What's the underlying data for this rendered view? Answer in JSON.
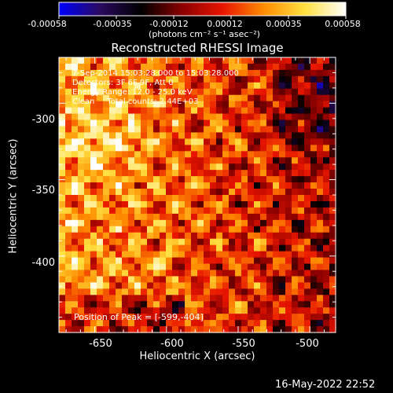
{
  "colorbar": {
    "ticks": [
      "-0.00058",
      "-0.00035",
      "-0.00012",
      "0.00012",
      "0.00035",
      "0.00058"
    ],
    "units_label": "(photons cm⁻² s⁻¹ asec⁻²)",
    "colors": [
      "#0000ff",
      "#2a0a60",
      "#000000",
      "#8a0000",
      "#e81500",
      "#ff8c00",
      "#ffe040",
      "#ffffff"
    ]
  },
  "chart_data": {
    "type": "heatmap",
    "title": "Reconstructed RHESSI Image",
    "xlabel": "Heliocentric X (arcsec)",
    "ylabel": "Heliocentric Y (arcsec)",
    "xlim": [
      -675,
      -482
    ],
    "ylim": [
      -450,
      -270
    ],
    "x_ticks": [
      -650,
      -600,
      -550,
      -500
    ],
    "y_ticks": [
      -300,
      -350,
      -400
    ],
    "value_range": [
      -0.00058,
      0.00058
    ],
    "info_lines": [
      "7-Sep-2014 15:03:28.000 to 15:03:28.000",
      "Detectors: 3F 6F 9F, Att 0",
      "Energy Range: 12.0 - 25.0 keV",
      "Clean     Total counts: 2.44E+03"
    ],
    "peak_label": "Position of Peak = [-599,-404]",
    "peak": [
      -599,
      -404
    ]
  },
  "timestamp": "16-May-2022 22:52"
}
